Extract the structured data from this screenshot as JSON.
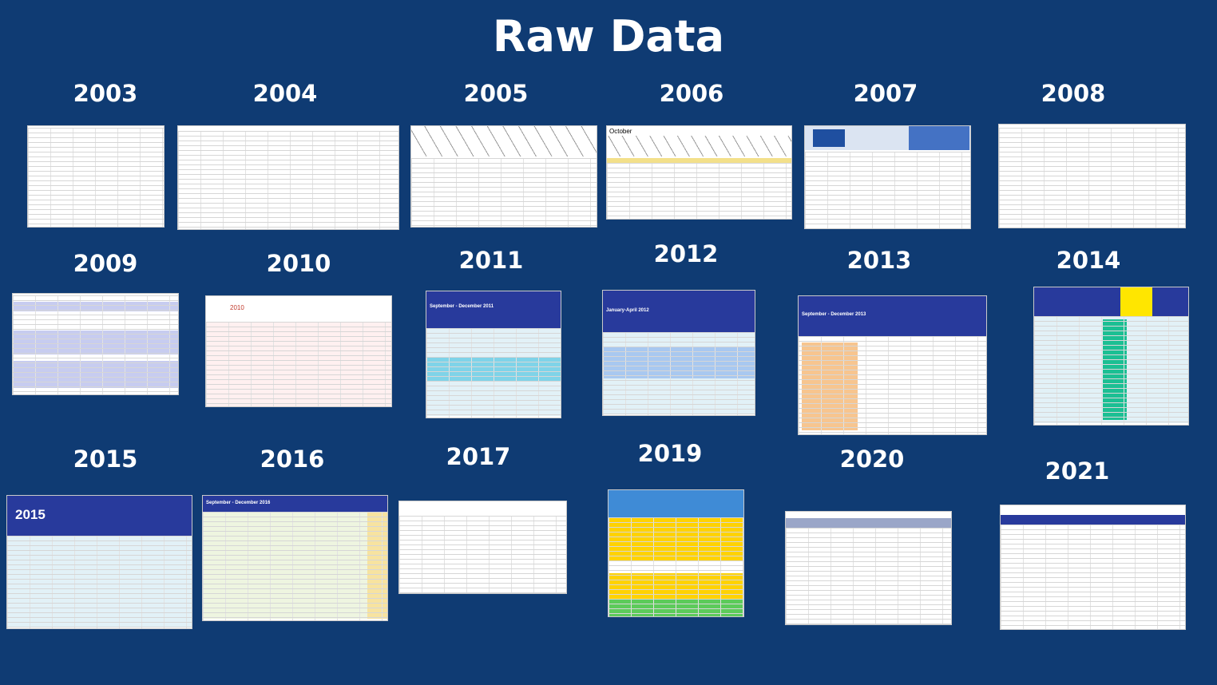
{
  "title": "Raw Data",
  "years": [
    "2003",
    "2004",
    "2005",
    "2006",
    "2007",
    "2008",
    "2009",
    "2010",
    "2011",
    "2012",
    "2013",
    "2014",
    "2015",
    "2016",
    "2017",
    "2019",
    "2020",
    "2021"
  ],
  "labels": {
    "2006": "October",
    "2011": "September - December 2011",
    "2012": "January-April 2012",
    "2013": "September - December 2013",
    "2015": "2015",
    "2016": "September - December 2016",
    "2010": "2010"
  }
}
